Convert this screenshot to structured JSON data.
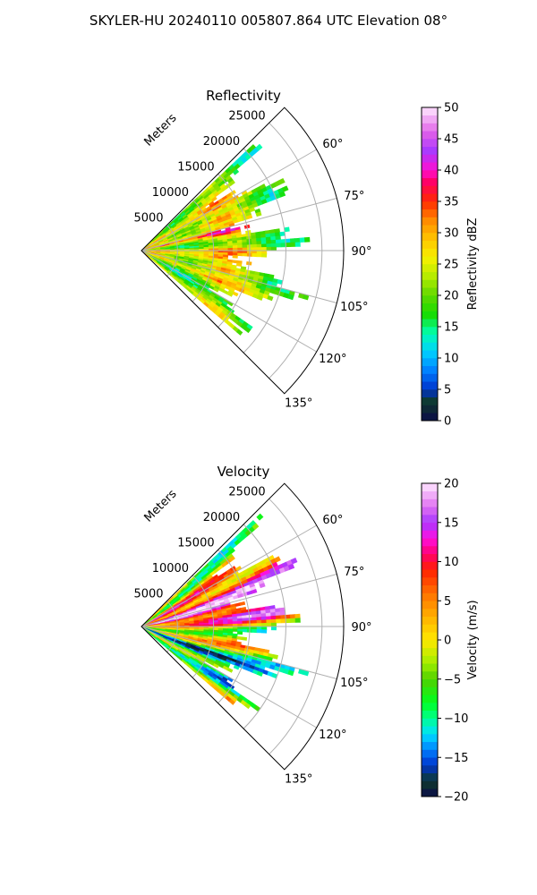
{
  "page": {
    "title": "SKYLER-HU  20240110  005807.864 UTC Elevation 08°"
  },
  "chart_data": [
    {
      "type": "heatmap",
      "projection": "polar-sector",
      "title": "Reflectivity",
      "range_axis_label": "Meters",
      "range_ticks": [
        5000,
        10000,
        15000,
        20000,
        25000
      ],
      "range_tick_labels": [
        "5000",
        "10000",
        "15000",
        "20000",
        "25000"
      ],
      "range_max": 28000,
      "azimuth_range_deg": [
        45,
        135
      ],
      "azimuth_ticks_deg": [
        60,
        75,
        90,
        105,
        120,
        135
      ],
      "azimuth_tick_labels": [
        "60°",
        "75°",
        "90°",
        "105°",
        "120°",
        "135°"
      ],
      "grid": true,
      "colorbar": {
        "label": "Reflectivity dBZ",
        "min": 0,
        "max": 50,
        "ticks": [
          0,
          5,
          10,
          15,
          20,
          25,
          30,
          35,
          40,
          45,
          50
        ],
        "tick_labels": [
          "0",
          "5",
          "10",
          "15",
          "20",
          "25",
          "30",
          "35",
          "40",
          "45",
          "50"
        ],
        "stops": [
          {
            "v": 0,
            "c": "#0b0b4a"
          },
          {
            "v": 3,
            "c": "#0f3a2a"
          },
          {
            "v": 5,
            "c": "#0033cc"
          },
          {
            "v": 8,
            "c": "#0080ff"
          },
          {
            "v": 11,
            "c": "#00d0ff"
          },
          {
            "v": 14,
            "c": "#00ffb0"
          },
          {
            "v": 17,
            "c": "#18dc00"
          },
          {
            "v": 20,
            "c": "#60d800"
          },
          {
            "v": 23,
            "c": "#b4ec00"
          },
          {
            "v": 26,
            "c": "#f6f000"
          },
          {
            "v": 29,
            "c": "#ffc400"
          },
          {
            "v": 32,
            "c": "#ff8a00"
          },
          {
            "v": 35,
            "c": "#ff2a00"
          },
          {
            "v": 38,
            "c": "#ff0060"
          },
          {
            "v": 40,
            "c": "#ff10d0"
          },
          {
            "v": 43,
            "c": "#a838ff"
          },
          {
            "v": 46,
            "c": "#e060e8"
          },
          {
            "v": 50,
            "c": "#ffe8ff"
          }
        ]
      }
    },
    {
      "type": "heatmap",
      "projection": "polar-sector",
      "title": "Velocity",
      "range_axis_label": "Meters",
      "range_ticks": [
        5000,
        10000,
        15000,
        20000,
        25000
      ],
      "range_tick_labels": [
        "5000",
        "10000",
        "15000",
        "20000",
        "25000"
      ],
      "range_max": 28000,
      "azimuth_range_deg": [
        45,
        135
      ],
      "azimuth_ticks_deg": [
        60,
        75,
        90,
        105,
        120,
        135
      ],
      "azimuth_tick_labels": [
        "60°",
        "75°",
        "90°",
        "105°",
        "120°",
        "135°"
      ],
      "grid": true,
      "colorbar": {
        "label": "Velocity (m/s)",
        "min": -20,
        "max": 20,
        "ticks": [
          -20,
          -15,
          -10,
          -5,
          0,
          5,
          10,
          15,
          20
        ],
        "tick_labels": [
          "−20",
          "−15",
          "−10",
          "−5",
          "0",
          "5",
          "10",
          "15",
          "20"
        ],
        "stops": [
          {
            "v": -20,
            "c": "#0b0b4a"
          },
          {
            "v": -18,
            "c": "#0f3a2a"
          },
          {
            "v": -16,
            "c": "#0033cc"
          },
          {
            "v": -14,
            "c": "#0080ff"
          },
          {
            "v": -12,
            "c": "#00e0ff"
          },
          {
            "v": -10,
            "c": "#00ff90"
          },
          {
            "v": -8,
            "c": "#00ff20"
          },
          {
            "v": -5,
            "c": "#50d000"
          },
          {
            "v": -3,
            "c": "#a0ee00"
          },
          {
            "v": 0,
            "c": "#ffe800"
          },
          {
            "v": 3,
            "c": "#ffb000"
          },
          {
            "v": 6,
            "c": "#ff7000"
          },
          {
            "v": 9,
            "c": "#ff2000"
          },
          {
            "v": 11,
            "c": "#ff0070"
          },
          {
            "v": 13,
            "c": "#ff10e0"
          },
          {
            "v": 15,
            "c": "#a838ff"
          },
          {
            "v": 17,
            "c": "#e070f0"
          },
          {
            "v": 20,
            "c": "#ffe8ff"
          }
        ]
      }
    }
  ]
}
